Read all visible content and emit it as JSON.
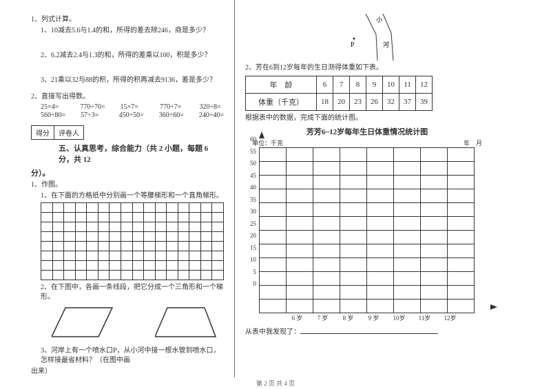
{
  "left": {
    "q1": "1、列式计算。",
    "q1_1": "1、10减去5.6与1.4的和，所得的差去除246，商是多少？",
    "q1_2": "2、6.2减去2.4与1.3的和，所得的差乘以100，积是多少？",
    "q1_3": "3、21乘以32与88的积，所得的积再减去9136，差是多少？",
    "q2": "2、直接写出得数。",
    "calc": [
      [
        "25×4=",
        "770÷70=",
        "15×7=",
        "770÷7=",
        "320÷8="
      ],
      [
        "560÷80=",
        "57÷3=",
        "450÷50=",
        "360÷60=",
        "240÷40="
      ]
    ],
    "score_labels": [
      "得分",
      "评卷人"
    ],
    "section5": "五、认真思考，综合能力（共 2 小题，每题 6 分，共 12",
    "fen": "分）。",
    "p1": "1、作图。",
    "p1_1": "1、在下面的方格纸中分别画一个等腰梯形和一个直角梯形。",
    "p1_2": "2、在下图中，各画一条线段，把它分成一个三角形和一个梯形。",
    "p1_3": "3、河岸上有一个喷水口P，从小河中接一根水管到喷水口，怎样接最省材料？（在图中画",
    "p1_3b": "出来）"
  },
  "right": {
    "diag_labels": {
      "p": "P",
      "small": "小",
      "river": "河"
    },
    "q2r": "2、芳在6到12岁每年的生日测得体重如下表。",
    "table": {
      "row1": [
        "年　龄",
        "6",
        "7",
        "8",
        "9",
        "10",
        "11",
        "12"
      ],
      "row2": [
        "体重（千克）",
        "18",
        "20",
        "23",
        "26",
        "32",
        "37",
        "39"
      ]
    },
    "note": "根据表中的数据，完成下面的统计图。",
    "chart_title": "芳芳6~12岁每年生日体重情况统计图",
    "unit": "单位：千克",
    "ym": "年　月",
    "y": [
      "60",
      "55",
      "50",
      "45",
      "40",
      "35",
      "30",
      "25",
      "20",
      "15",
      "10",
      "5",
      "0"
    ],
    "x": [
      "",
      "6 岁",
      "7 岁",
      "8 岁",
      "9 岁",
      "10岁",
      "11岁",
      "12岁"
    ],
    "found": "从表中我发现了："
  },
  "footer": "第 2 页 共 4 页"
}
